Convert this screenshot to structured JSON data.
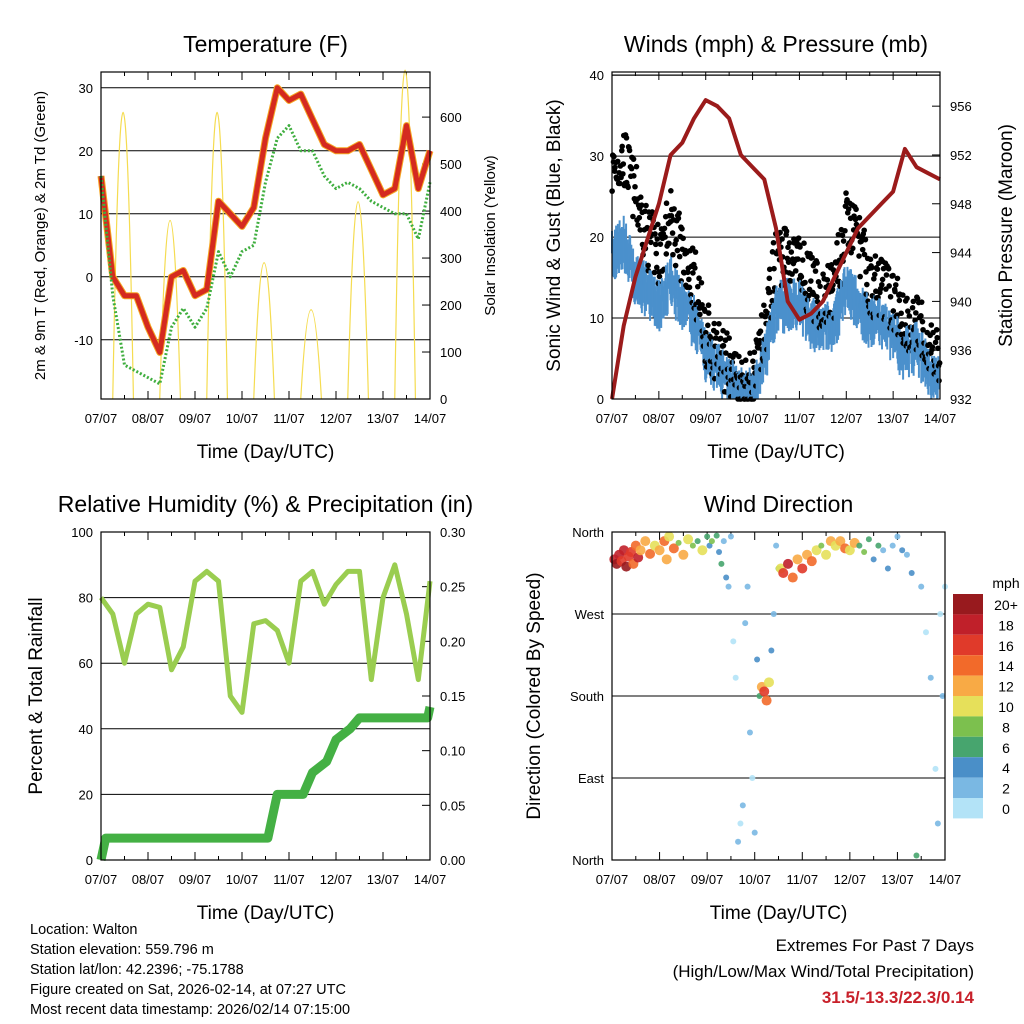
{
  "info": {
    "location": "Location: Walton",
    "elevation": "Station elevation: 559.796 m",
    "latlon": "Station lat/lon: 42.2396; -75.1788",
    "created": "Figure created on Sat, 2026-02-14, at 07:27 UTC",
    "recent": "Most recent data timestamp: 2026/02/14 07:15:00"
  },
  "extremes": {
    "title": "Extremes For Past 7 Days",
    "subtitle": "(High/Low/Max Wind/Total Precipitation)",
    "values": "31.5/-13.3/22.3/0.14"
  },
  "colors": {
    "temp": "#d42a20",
    "temp_outline": "#f5a623",
    "dewpoint": "#3fae3f",
    "solar": "#f5dc50",
    "wind": "#4b90cc",
    "gust": "#000000",
    "pressure": "#9b1b1b",
    "rh": "#9acd50",
    "precip": "#44b044"
  },
  "chart_data": [
    {
      "type": "line",
      "title": "Temperature (F)",
      "xlabel": "Time (Day/UTC)",
      "ylabel": "2m & 9m T (Red, Orange) & 2m Td (Green)",
      "ylabel_right": "Solar Insolation (Yellow)",
      "xticks": [
        "07/07",
        "08/07",
        "09/07",
        "10/07",
        "11/07",
        "12/07",
        "13/07",
        "14/07"
      ],
      "yticks": [
        "-10",
        "0",
        "10",
        "20",
        "30"
      ],
      "yticks_right": [
        "0",
        "100",
        "200",
        "300",
        "400",
        "500",
        "600"
      ],
      "ylim": [
        -19.4,
        32.5
      ],
      "ylim_right": [
        0,
        696
      ],
      "x_step_days": 0.25,
      "series": [
        {
          "name": "2m & 9m T",
          "values": [
            16,
            0,
            -3,
            -3,
            -8,
            -12,
            0,
            1,
            -3,
            -2,
            12,
            10,
            8,
            11,
            22,
            30,
            28,
            29,
            25,
            21,
            20,
            20,
            21,
            17,
            13,
            14,
            24,
            14,
            20
          ]
        },
        {
          "name": "2m Td",
          "values": [
            16,
            -3,
            -14,
            -15,
            -16,
            -17,
            -8,
            -5,
            -8,
            -5,
            4,
            0,
            4,
            5,
            15,
            22,
            24,
            20,
            20,
            16,
            14,
            15,
            14,
            12,
            11,
            10,
            10,
            6,
            15
          ]
        }
      ],
      "solar_peaks": {
        "day_offset": 0.47,
        "values": [
          610,
          380,
          610,
          290,
          190,
          420,
          700
        ]
      }
    },
    {
      "type": "line",
      "title": "Winds (mph) & Pressure (mb)",
      "xlabel": "Time (Day/UTC)",
      "ylabel": "Sonic Wind & Gust (Blue, Black)",
      "ylabel_right": "Station Pressure (Maroon)",
      "xticks": [
        "07/07",
        "08/07",
        "09/07",
        "10/07",
        "11/07",
        "12/07",
        "13/07",
        "14/07"
      ],
      "yticks": [
        "0",
        "10",
        "20",
        "30",
        "40"
      ],
      "yticks_right": [
        "932",
        "936",
        "940",
        "944",
        "948",
        "952",
        "956"
      ],
      "ylim": [
        0,
        40.4
      ],
      "ylim_right": [
        932,
        958.8
      ],
      "x_step_days": 0.25,
      "series": [
        {
          "name": "Sonic Wind",
          "values": [
            18,
            20,
            15,
            14,
            12,
            15,
            12,
            10,
            6,
            4,
            3,
            1,
            1,
            5,
            12,
            12,
            12,
            10,
            9,
            10,
            14,
            12,
            10,
            10,
            8,
            6,
            7,
            4,
            2
          ]
        },
        {
          "name": "Gust",
          "values": [
            28,
            30,
            25,
            20,
            18,
            22,
            18,
            15,
            8,
            6,
            4,
            2,
            2,
            8,
            18,
            18,
            16,
            14,
            12,
            14,
            22,
            20,
            14,
            14,
            12,
            10,
            9,
            7,
            4
          ]
        },
        {
          "name": "Station Pressure",
          "values": [
            932,
            938,
            942,
            945,
            948,
            952,
            953,
            955,
            956.5,
            956,
            955,
            952,
            951,
            950,
            946,
            940,
            938.5,
            939,
            940,
            942,
            944,
            946,
            947,
            948,
            949,
            952.5,
            951,
            950.5,
            950
          ]
        }
      ]
    },
    {
      "type": "line",
      "title": "Relative Humidity (%) & Precipitation (in)",
      "xlabel": "Time (Day/UTC)",
      "ylabel": "Percent & Total Rainfall",
      "xticks": [
        "07/07",
        "08/07",
        "09/07",
        "10/07",
        "11/07",
        "12/07",
        "13/07",
        "14/07"
      ],
      "yticks": [
        "0",
        "20",
        "40",
        "60",
        "80",
        "100"
      ],
      "yticks_right": [
        "0.00",
        "0.05",
        "0.10",
        "0.15",
        "0.20",
        "0.25",
        "0.30"
      ],
      "ylim": [
        0,
        100
      ],
      "ylim_right": [
        0,
        0.3
      ],
      "x_step_days": 0.25,
      "series": [
        {
          "name": "Relative Humidity",
          "values": [
            80,
            75,
            60,
            75,
            78,
            77,
            58,
            65,
            85,
            88,
            85,
            50,
            45,
            72,
            73,
            70,
            60,
            85,
            88,
            78,
            84,
            88,
            88,
            55,
            80,
            90,
            75,
            55,
            85
          ]
        },
        {
          "name": "Total Precipitation",
          "points": [
            [
              0,
              0
            ],
            [
              0.1,
              0.02
            ],
            [
              3.55,
              0.02
            ],
            [
              3.6,
              0.03
            ],
            [
              3.75,
              0.06
            ],
            [
              4.3,
              0.06
            ],
            [
              4.5,
              0.08
            ],
            [
              4.8,
              0.09
            ],
            [
              5.0,
              0.11
            ],
            [
              5.3,
              0.12
            ],
            [
              5.5,
              0.13
            ],
            [
              6.95,
              0.13
            ],
            [
              7,
              0.14
            ]
          ]
        }
      ]
    },
    {
      "type": "scatter",
      "title": "Wind Direction",
      "xlabel": "Time (Day/UTC)",
      "ylabel": "Direction (Colored By Speed)",
      "xticks": [
        "07/07",
        "08/07",
        "09/07",
        "10/07",
        "11/07",
        "12/07",
        "13/07",
        "14/07"
      ],
      "yticks": [
        "North",
        "East",
        "South",
        "West",
        "North"
      ],
      "ylim": [
        0,
        360
      ],
      "legend": {
        "title": "mph",
        "labels": [
          "20+",
          "18",
          "16",
          "14",
          "12",
          "10",
          "8",
          "6",
          "4",
          "2",
          "0"
        ],
        "colors": [
          "#981a1e",
          "#c0202a",
          "#e03a2a",
          "#f26a2a",
          "#f8aa45",
          "#e6e05a",
          "#7cc04e",
          "#47a56e",
          "#4a8fc8",
          "#7ab8e3",
          "#b3e3f7"
        ]
      },
      "points": [
        [
          0.05,
          330,
          18
        ],
        [
          0.1,
          325,
          20
        ],
        [
          0.15,
          335,
          18
        ],
        [
          0.2,
          328,
          16
        ],
        [
          0.25,
          340,
          19
        ],
        [
          0.3,
          322,
          20
        ],
        [
          0.35,
          333,
          17
        ],
        [
          0.4,
          338,
          16
        ],
        [
          0.45,
          325,
          14
        ],
        [
          0.5,
          345,
          15
        ],
        [
          0.55,
          332,
          18
        ],
        [
          0.6,
          340,
          12
        ],
        [
          0.7,
          350,
          12
        ],
        [
          0.8,
          336,
          14
        ],
        [
          0.9,
          345,
          10
        ],
        [
          1.0,
          340,
          12
        ],
        [
          1.1,
          350,
          14
        ],
        [
          1.15,
          330,
          12
        ],
        [
          1.2,
          355,
          10
        ],
        [
          1.3,
          342,
          14
        ],
        [
          1.4,
          348,
          8
        ],
        [
          1.5,
          335,
          12
        ],
        [
          1.6,
          352,
          10
        ],
        [
          1.7,
          345,
          8
        ],
        [
          1.8,
          350,
          6
        ],
        [
          1.9,
          340,
          10
        ],
        [
          2.0,
          355,
          6
        ],
        [
          2.05,
          345,
          4
        ],
        [
          2.1,
          350,
          8
        ],
        [
          2.2,
          356,
          6
        ],
        [
          2.25,
          338,
          4
        ],
        [
          2.3,
          325,
          6
        ],
        [
          2.35,
          350,
          2
        ],
        [
          2.4,
          310,
          4
        ],
        [
          2.45,
          300,
          2
        ],
        [
          2.5,
          355,
          3
        ],
        [
          2.55,
          240,
          1
        ],
        [
          2.6,
          200,
          0
        ],
        [
          2.65,
          20,
          2
        ],
        [
          2.7,
          40,
          1
        ],
        [
          2.75,
          60,
          2
        ],
        [
          2.8,
          260,
          2
        ],
        [
          2.85,
          300,
          3
        ],
        [
          2.9,
          140,
          2
        ],
        [
          2.95,
          90,
          1
        ],
        [
          3.0,
          30,
          2
        ],
        [
          3.05,
          220,
          4
        ],
        [
          3.1,
          180,
          6
        ],
        [
          3.15,
          190,
          12
        ],
        [
          3.2,
          185,
          16
        ],
        [
          3.25,
          175,
          14
        ],
        [
          3.3,
          195,
          10
        ],
        [
          3.35,
          230,
          4
        ],
        [
          3.4,
          270,
          3
        ],
        [
          3.45,
          345,
          2
        ],
        [
          3.5,
          320,
          8
        ],
        [
          3.55,
          320,
          10
        ],
        [
          3.6,
          315,
          16
        ],
        [
          3.7,
          325,
          18
        ],
        [
          3.8,
          310,
          14
        ],
        [
          3.9,
          330,
          12
        ],
        [
          4.0,
          320,
          16
        ],
        [
          4.1,
          335,
          12
        ],
        [
          4.2,
          328,
          14
        ],
        [
          4.3,
          340,
          10
        ],
        [
          4.4,
          345,
          8
        ],
        [
          4.5,
          335,
          10
        ],
        [
          4.6,
          350,
          12
        ],
        [
          4.7,
          345,
          10
        ],
        [
          4.8,
          350,
          12
        ],
        [
          4.9,
          342,
          14
        ],
        [
          5.0,
          340,
          10
        ],
        [
          5.1,
          348,
          12
        ],
        [
          5.2,
          345,
          6
        ],
        [
          5.3,
          338,
          8
        ],
        [
          5.4,
          352,
          6
        ],
        [
          5.5,
          330,
          4
        ],
        [
          5.6,
          345,
          6
        ],
        [
          5.7,
          340,
          3
        ],
        [
          5.8,
          320,
          4
        ],
        [
          5.9,
          345,
          2
        ],
        [
          6.0,
          355,
          3
        ],
        [
          6.1,
          340,
          4
        ],
        [
          6.2,
          335,
          2
        ],
        [
          6.3,
          315,
          4
        ],
        [
          6.4,
          5,
          6
        ],
        [
          6.5,
          300,
          2
        ],
        [
          6.6,
          250,
          1
        ],
        [
          6.7,
          200,
          2
        ],
        [
          6.8,
          100,
          1
        ],
        [
          6.85,
          40,
          2
        ],
        [
          6.9,
          270,
          0
        ],
        [
          6.95,
          180,
          2
        ],
        [
          7.0,
          300,
          1
        ]
      ]
    }
  ]
}
